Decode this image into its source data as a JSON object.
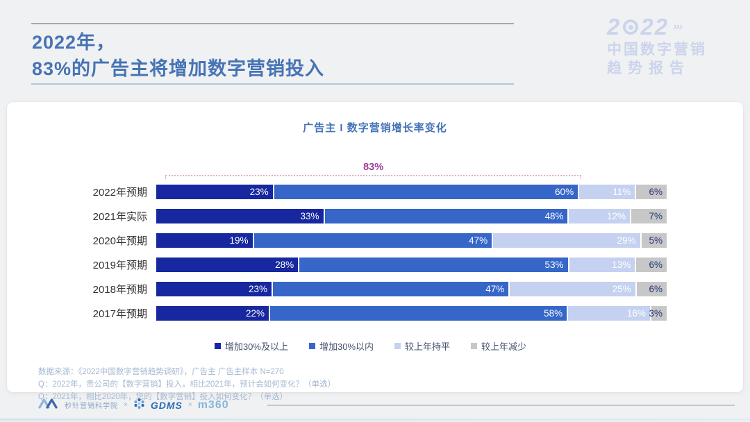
{
  "header": {
    "title_line1": "2022年，",
    "title_line2": "83%的广告主将增加数字营销投入"
  },
  "logo": {
    "year_prefix": "2",
    "year_suffix": "22",
    "arrows": "›››",
    "line1": "中国数字营销",
    "line2": "趋势报告"
  },
  "chart": {
    "title": "广告主 I 数字营销增长率变化",
    "bracket_label": "83%"
  },
  "chart_data": {
    "type": "bar",
    "orientation": "horizontal",
    "stacked": true,
    "title": "广告主 I 数字营销增长率变化",
    "categories": [
      "2022年预期",
      "2021年实际",
      "2020年预期",
      "2019年预期",
      "2018年预期",
      "2017年预期"
    ],
    "series": [
      {
        "name": "增加30%及以上",
        "color": "#16279f",
        "values": [
          23,
          33,
          19,
          28,
          23,
          22
        ]
      },
      {
        "name": "增加30%以内",
        "color": "#3566c8",
        "values": [
          60,
          48,
          47,
          53,
          47,
          58
        ]
      },
      {
        "name": "较上年持平",
        "color": "#c5d1f1",
        "values": [
          11,
          12,
          29,
          13,
          25,
          16
        ]
      },
      {
        "name": "较上年减少",
        "color": "#c7c7c7",
        "values": [
          6,
          7,
          5,
          6,
          6,
          3
        ]
      }
    ],
    "value_suffix": "%",
    "annotation": {
      "label": "83%",
      "covers": "2022年预期 前两段之和 (23%+60%)"
    },
    "legend_position": "bottom",
    "xlim": [
      0,
      100
    ]
  },
  "notes": [
    "数据来源：《2022中国数字营销趋势调研》，广告主 广告主样本 N=270",
    "Q：2022年，贵公司的【数字营销】投入，相比2021年，预计会如何变化？（单选）",
    "Q：2021年，相比2020年，您的【数字营销】投入如何变化？（单选）"
  ],
  "footer": {
    "brand1": "秒针营销科学院",
    "sep1": "×",
    "brand2": "GDMS",
    "sep2": "×",
    "brand3": "m360"
  },
  "colors": {
    "title_blue": "#4673b5",
    "chart_title_blue": "#4372b8",
    "annotation_magenta": "#a03c9b",
    "bracket_pink": "#dcaecb",
    "grey_segment_text": "#24347c",
    "notes_grey_blue": "#a4b9d2"
  }
}
